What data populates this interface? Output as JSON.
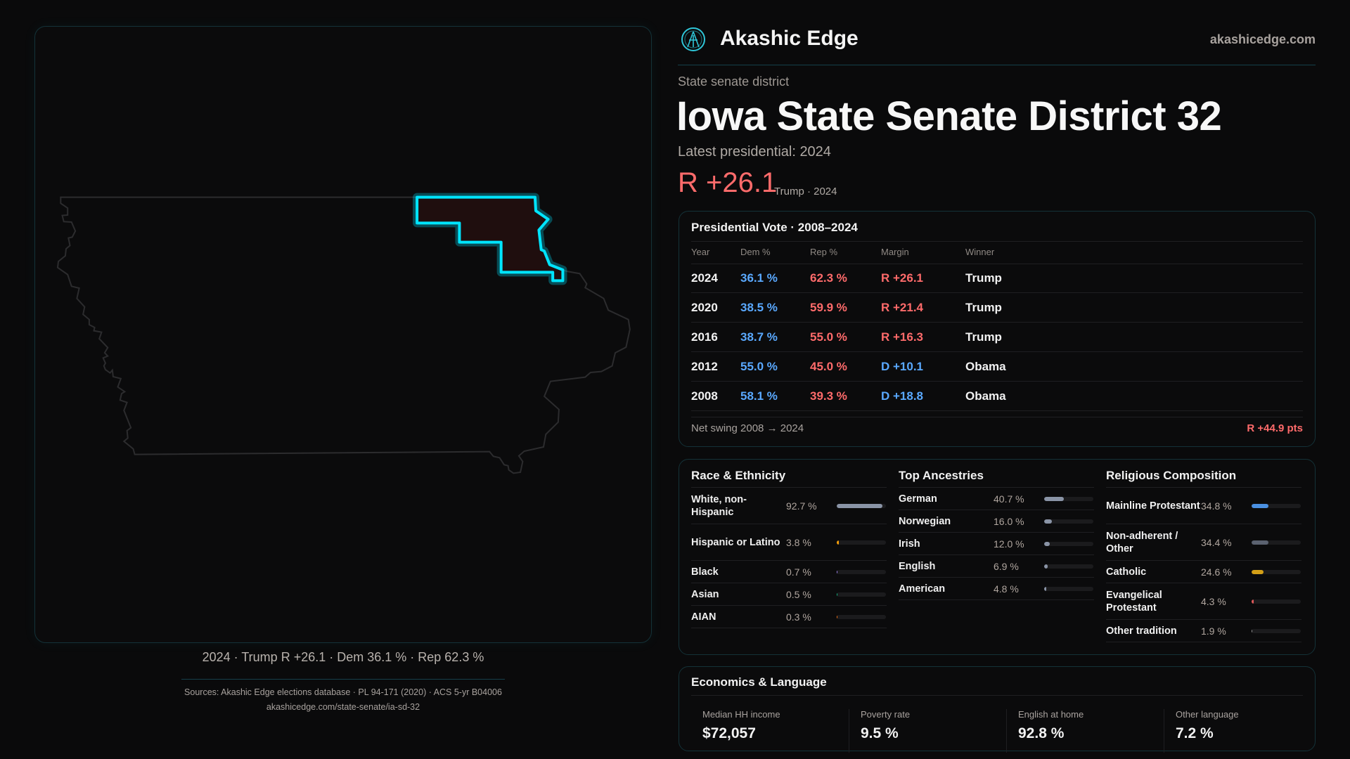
{
  "brand": {
    "name": "Akashic Edge",
    "site": "akashicedge.com",
    "logo_icon": "akashic-edge-logo"
  },
  "district": {
    "kind": "State senate district",
    "title": "Iowa State Senate District 32",
    "latest_label": "Latest presidential: 2024",
    "margin": "R +26.1",
    "margin_sub": "Trump · 2024"
  },
  "map": {
    "caption": "2024 · Trump R +26.1 · Dem 36.1 % · Rep 62.3 %",
    "highlight_color": "#00e5ff",
    "district_fill": "#1f0e0e"
  },
  "colors": {
    "dem": "#5aa9ff",
    "rep": "#ff6b6b",
    "accent": "#00e5ff"
  },
  "presidential": {
    "title": "Presidential Vote · 2008–2024",
    "headers": [
      "Year",
      "Dem %",
      "Rep %",
      "Margin",
      "Winner"
    ],
    "rows": [
      {
        "year": "2024",
        "dem": "36.1 %",
        "rep": "62.3 %",
        "margin": "R +26.1",
        "party": "rep",
        "winner": "Trump"
      },
      {
        "year": "2020",
        "dem": "38.5 %",
        "rep": "59.9 %",
        "margin": "R +21.4",
        "party": "rep",
        "winner": "Trump"
      },
      {
        "year": "2016",
        "dem": "38.7 %",
        "rep": "55.0 %",
        "margin": "R +16.3",
        "party": "rep",
        "winner": "Trump"
      },
      {
        "year": "2012",
        "dem": "55.0 %",
        "rep": "45.0 %",
        "margin": "D +10.1",
        "party": "dem",
        "winner": "Obama"
      },
      {
        "year": "2008",
        "dem": "58.1 %",
        "rep": "39.3 %",
        "margin": "D +18.8",
        "party": "dem",
        "winner": "Obama"
      }
    ],
    "swing_label": "Net swing 2008 → 2024",
    "swing_value": "R +44.9 pts"
  },
  "demographics": [
    {
      "title": "Race & Ethnicity",
      "items": [
        {
          "label": "White, non-Hispanic",
          "value": "92.7 %",
          "pct": 92.7,
          "color": "#8a94a6"
        },
        {
          "label": "Hispanic or Latino",
          "value": "3.8 %",
          "pct": 3.8,
          "color": "#f59e0b"
        },
        {
          "label": "Black",
          "value": "0.7 %",
          "pct": 0.7,
          "color": "#a78bfa"
        },
        {
          "label": "Asian",
          "value": "0.5 %",
          "pct": 0.5,
          "color": "#10b981"
        },
        {
          "label": "AIAN",
          "value": "0.3 %",
          "pct": 0.3,
          "color": "#f97316"
        }
      ]
    },
    {
      "title": "Top Ancestries",
      "items": [
        {
          "label": "German",
          "value": "40.7 %",
          "pct": 40.7,
          "color": "#8a94a6"
        },
        {
          "label": "Norwegian",
          "value": "16.0 %",
          "pct": 16.0,
          "color": "#8a94a6"
        },
        {
          "label": "Irish",
          "value": "12.0 %",
          "pct": 12.0,
          "color": "#8a94a6"
        },
        {
          "label": "English",
          "value": "6.9 %",
          "pct": 6.9,
          "color": "#8a94a6"
        },
        {
          "label": "American",
          "value": "4.8 %",
          "pct": 4.8,
          "color": "#8a94a6"
        }
      ]
    },
    {
      "title": "Religious Composition",
      "items": [
        {
          "label": "Mainline Protestant",
          "value": "34.8 %",
          "pct": 34.8,
          "color": "#4a90e2"
        },
        {
          "label": "Non-adherent / Other",
          "value": "34.4 %",
          "pct": 34.4,
          "color": "#5b6270"
        },
        {
          "label": "Catholic",
          "value": "24.6 %",
          "pct": 24.6,
          "color": "#d4a017"
        },
        {
          "label": "Evangelical Protestant",
          "value": "4.3 %",
          "pct": 4.3,
          "color": "#e05a5a"
        },
        {
          "label": "Other tradition",
          "value": "1.9 %",
          "pct": 1.9,
          "color": "#9a9a9a"
        }
      ]
    }
  ],
  "economics": {
    "title": "Economics & Language",
    "stats": [
      {
        "label": "Median HH income",
        "value": "$72,057"
      },
      {
        "label": "Poverty rate",
        "value": "9.5 %"
      },
      {
        "label": "English at home",
        "value": "92.8 %"
      },
      {
        "label": "Other language",
        "value": "7.2 %"
      }
    ]
  },
  "footer": {
    "sources": "Sources: Akashic Edge elections database · PL 94-171 (2020) · ACS 5-yr B04006",
    "url": "akashicedge.com/state-senate/ia-sd-32"
  }
}
